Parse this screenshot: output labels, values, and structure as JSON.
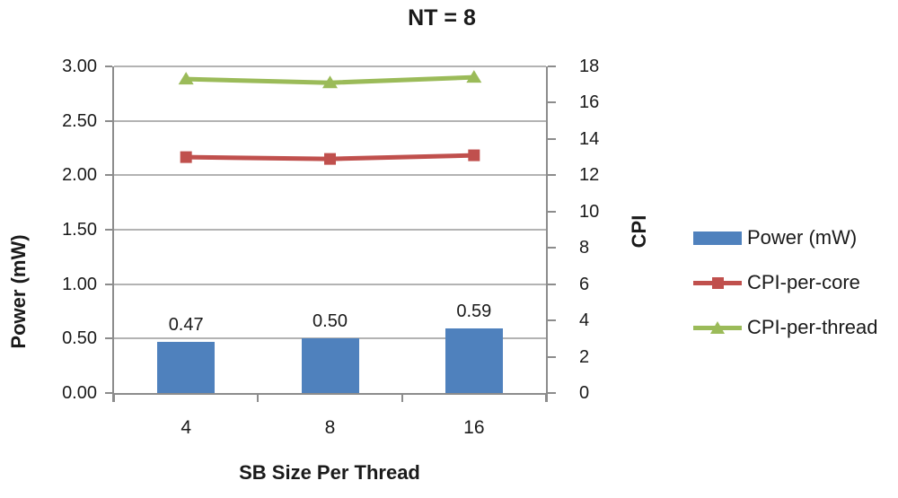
{
  "chart_data": {
    "type": "combo-bar-line",
    "title": "NT = 8",
    "categories": [
      "4",
      "8",
      "16"
    ],
    "xlabel": "SB Size Per Thread",
    "grid": true,
    "legend_position": "right",
    "left_axis": {
      "label": "Power (mW)",
      "min": 0,
      "max": 3,
      "step": 0.5,
      "tick_labels_top_to_bottom": [
        "3.00",
        "2.50",
        "2.00",
        "1.50",
        "1.00",
        "0.50",
        "0.00"
      ]
    },
    "right_axis": {
      "label": "CPI",
      "min": 0,
      "max": 18,
      "step": 2,
      "tick_labels_top_to_bottom": [
        "18",
        "16",
        "14",
        "12",
        "10",
        "8",
        "6",
        "4",
        "2",
        "0"
      ]
    },
    "series": [
      {
        "name": "Power (mW)",
        "type": "bar",
        "axis": "left",
        "color": "#4F81BD",
        "values": [
          0.47,
          0.5,
          0.59
        ],
        "data_labels": [
          "0.47",
          "0.50",
          "0.59"
        ]
      },
      {
        "name": "CPI-per-core",
        "type": "line",
        "marker": "square",
        "axis": "right",
        "color": "#C0504D",
        "values": [
          13.0,
          12.9,
          13.1
        ]
      },
      {
        "name": "CPI-per-thread",
        "type": "line",
        "marker": "triangle",
        "axis": "right",
        "color": "#9BBB59",
        "values": [
          17.3,
          17.1,
          17.4
        ]
      }
    ]
  }
}
